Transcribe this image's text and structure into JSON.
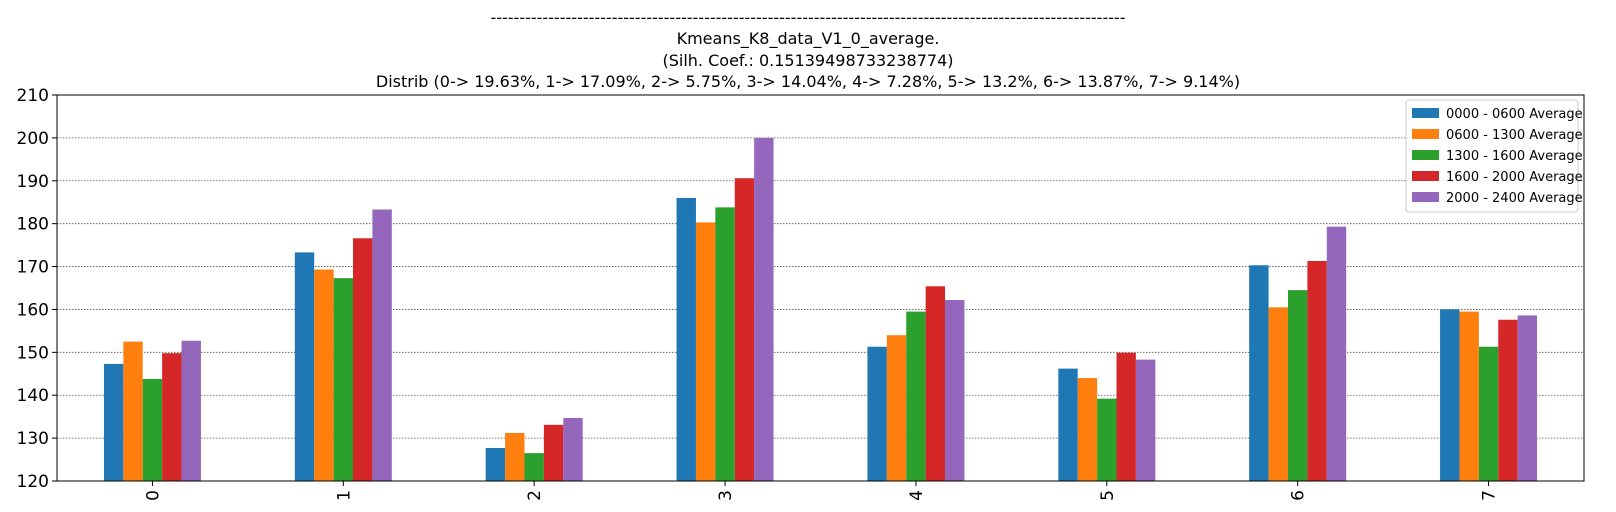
{
  "chart_data": {
    "type": "bar",
    "title_lines": [
      "--------------------------------------------------------------------------------------------------------------",
      "Kmeans_K8_data_V1_0_average.",
      "(Silh. Coef.: 0.15139498733238774)",
      "Distrib (0-> 19.63%, 1-> 17.09%, 2-> 5.75%, 3-> 14.04%, 4-> 7.28%, 5-> 13.2%, 6-> 13.87%, 7-> 9.14%)"
    ],
    "categories": [
      "0",
      "1",
      "2",
      "3",
      "4",
      "5",
      "6",
      "7"
    ],
    "series": [
      {
        "name": "0000 - 0600 Average",
        "color": "#1f77b4",
        "values": [
          147.3,
          173.3,
          127.7,
          186.0,
          151.3,
          146.2,
          170.3,
          160.0
        ]
      },
      {
        "name": "0600 - 1300 Average",
        "color": "#ff7f0e",
        "values": [
          152.5,
          169.3,
          131.2,
          180.3,
          154.0,
          144.0,
          160.5,
          159.5
        ]
      },
      {
        "name": "1300 - 1600 Average",
        "color": "#2ca02c",
        "values": [
          143.8,
          167.3,
          126.5,
          183.8,
          159.5,
          139.2,
          164.5,
          151.3
        ]
      },
      {
        "name": "1600 - 2000 Average",
        "color": "#d62728",
        "values": [
          149.8,
          176.6,
          133.1,
          190.6,
          165.4,
          149.9,
          171.3,
          157.6
        ]
      },
      {
        "name": "2000 - 2400 Average",
        "color": "#9467bd",
        "values": [
          152.7,
          183.3,
          134.7,
          200.0,
          162.2,
          148.3,
          179.3,
          158.6
        ]
      }
    ],
    "yticks": [
      "120",
      "130",
      "140",
      "150",
      "160",
      "170",
      "180",
      "190",
      "200",
      "210"
    ],
    "ylim": [
      120,
      210
    ],
    "grid": "horizontal dotted",
    "legend_position": "top-right",
    "xtick_rotation": "vertical"
  }
}
